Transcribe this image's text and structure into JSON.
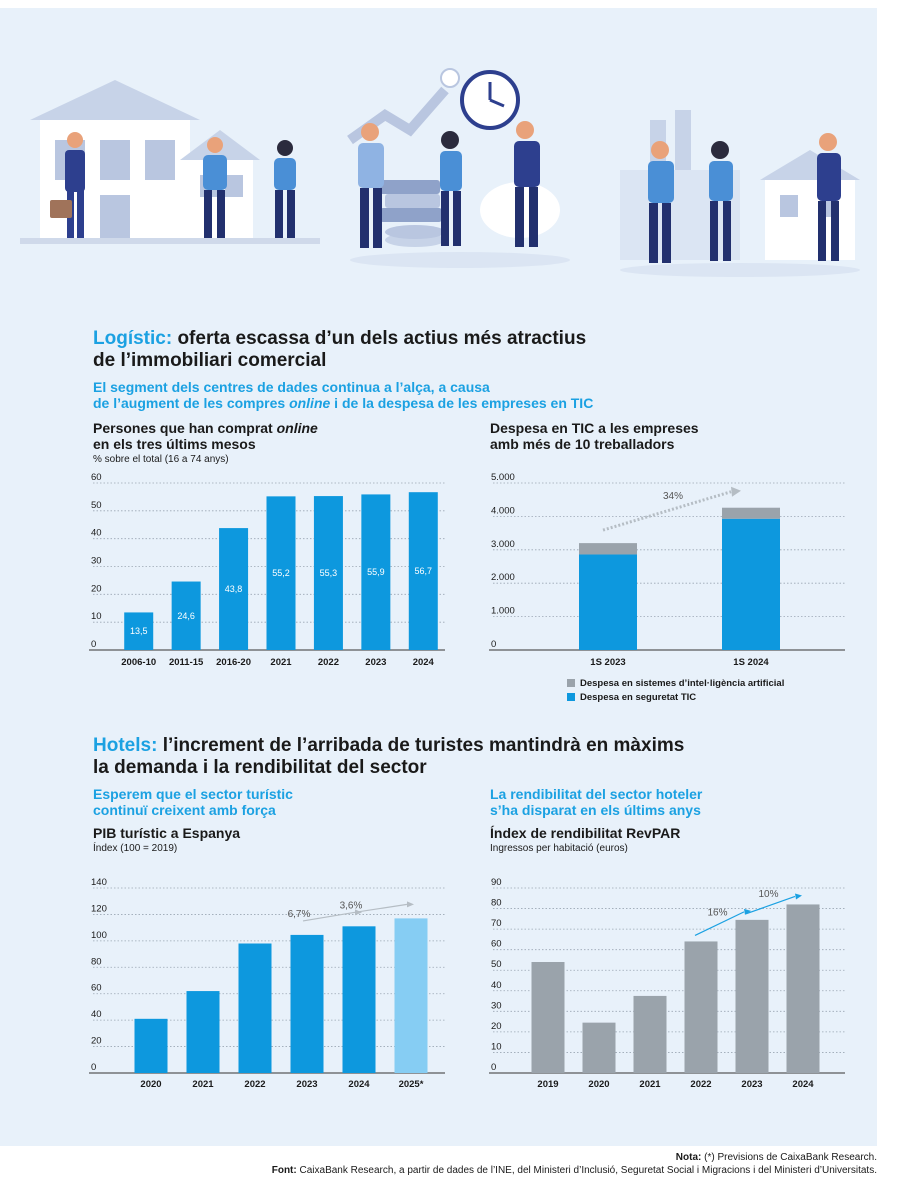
{
  "colors": {
    "blue": "#0d98de",
    "light_blue": "#86cdf3",
    "grey": "#9aa3ab",
    "arrow": "#b5bdc4",
    "accent": "#1ba1e2"
  },
  "logistic": {
    "highlight": "Logístic:",
    "title_l1": "oferta escassa d’un dels actius més atractius",
    "title_l2": "de l’immobiliari comercial",
    "sub_l1": "El segment dels centres de dades continua a l’alça, a causa",
    "sub_l2_pre": "de l’augment de les compres ",
    "sub_l2_em": "online",
    "sub_l2_post": " i de la despesa de les empreses en TIC"
  },
  "chart1": {
    "title_l1_pre": "Persones que han comprat ",
    "title_l1_em": "online",
    "title_l2": "en els tres últims mesos",
    "unit": "% sobre el total (16 a 74 anys)"
  },
  "chart2": {
    "title_l1": "Despesa en TIC a les empreses",
    "title_l2": "amb més de 10 treballadors",
    "legend_ai": "Despesa en sistemes d’intel·ligència artificial",
    "legend_sec": "Despesa en seguretat TIC"
  },
  "hotels": {
    "highlight": "Hotels:",
    "title_l1": "l’increment de l’arribada de turistes mantindrà en màxims",
    "title_l2": "la demanda i la rendibilitat del sector"
  },
  "chart3": {
    "sub_l1": "Esperem que el sector turístic",
    "sub_l2": "continuï creixent amb força",
    "title": "PIB turístic a Espanya",
    "unit": "Índex (100 = 2019)"
  },
  "chart4": {
    "sub_l1": "La rendibilitat del sector hoteler",
    "sub_l2": "s’ha disparat en els últims anys",
    "title": "Índex de rendibilitat RevPAR",
    "unit": "Ingressos per habitació (euros)"
  },
  "footer": {
    "note_label": "Nota:",
    "note_text": " (*) Previsions de CaixaBank Research.",
    "source_label": "Font:",
    "source_text": " CaixaBank Research, a partir de dades de l’INE, del Ministeri d’Inclusió, Seguretat Social i Migracions i del Ministeri d’Universitats."
  },
  "chart_data": [
    {
      "type": "bar",
      "title": "Persones que han comprat online en els tres últims mesos",
      "unit": "% sobre el total (16 a 74 anys)",
      "categories": [
        "2006-10",
        "2011-15",
        "2016-20",
        "2021",
        "2022",
        "2023",
        "2024"
      ],
      "values": [
        13.5,
        24.6,
        43.8,
        55.2,
        55.3,
        55.9,
        56.7
      ],
      "value_labels": [
        "13,5",
        "24,6",
        "43,8",
        "55,2",
        "55,3",
        "55,9",
        "56,7"
      ],
      "yticks": [
        "0",
        "10",
        "20",
        "30",
        "40",
        "50",
        "60"
      ],
      "ylim": [
        0,
        60
      ],
      "grid": true
    },
    {
      "type": "bar",
      "stacked": true,
      "title": "Despesa en TIC a les empreses amb més de 10 treballadors",
      "categories": [
        "1S 2023",
        "1S 2024"
      ],
      "series": [
        {
          "name": "Despesa en seguretat TIC",
          "values": [
            2860,
            3930
          ]
        },
        {
          "name": "Despesa en sistemes d’intel·ligència artificial",
          "values": [
            340,
            330
          ]
        }
      ],
      "yticks": [
        "0",
        "1.000",
        "2.000",
        "3.000",
        "4.000",
        "5.000"
      ],
      "ylim": [
        0,
        5000
      ],
      "annotation": "34%",
      "legend": "bottom-left",
      "grid": true
    },
    {
      "type": "bar",
      "title": "PIB turístic a Espanya",
      "unit": "Índex (100 = 2019)",
      "categories": [
        "2020",
        "2021",
        "2022",
        "2023",
        "2024",
        "2025*"
      ],
      "values": [
        41,
        62,
        98,
        104.5,
        111,
        117
      ],
      "forecast": [
        false,
        false,
        false,
        false,
        false,
        true
      ],
      "yticks": [
        "0",
        "20",
        "40",
        "60",
        "80",
        "100",
        "120",
        "140"
      ],
      "ylim": [
        0,
        140
      ],
      "annotations": [
        "6,7%",
        "3,6%"
      ],
      "grid": true
    },
    {
      "type": "bar",
      "title": "Índex de rendibilitat RevPAR",
      "unit": "Ingressos per habitació (euros)",
      "categories": [
        "2019",
        "2020",
        "2021",
        "2022",
        "2023",
        "2024"
      ],
      "values": [
        54,
        24.5,
        37.5,
        64,
        74.5,
        82
      ],
      "yticks": [
        "0",
        "10",
        "20",
        "30",
        "40",
        "50",
        "60",
        "70",
        "80",
        "90"
      ],
      "ylim": [
        0,
        90
      ],
      "annotations": [
        "16%",
        "10%"
      ],
      "grid": true
    }
  ]
}
